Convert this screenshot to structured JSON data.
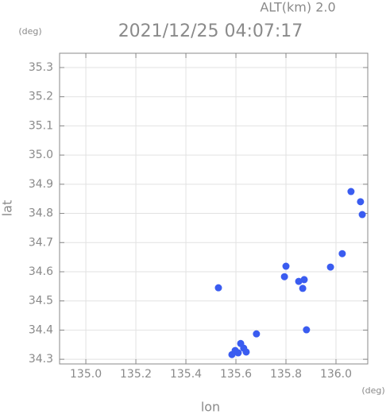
{
  "chart_data": {
    "type": "scatter",
    "title": "2021/12/25 04:07:17",
    "annotation": "ALT(km)  2.0",
    "x_label": "lon",
    "y_label": "lat",
    "x_unit": "(deg)",
    "y_unit": "(deg)",
    "x": [
      135.53,
      135.584,
      135.609,
      135.619,
      135.631,
      135.641,
      135.597,
      135.682,
      135.8,
      135.794,
      135.851,
      135.873,
      135.867,
      135.882,
      135.978,
      136.025,
      136.06,
      136.098,
      136.105
    ],
    "values": [
      34.545,
      34.316,
      34.322,
      34.354,
      34.338,
      34.325,
      34.33,
      34.387,
      34.619,
      34.583,
      34.567,
      34.573,
      34.543,
      34.401,
      34.616,
      34.662,
      34.875,
      34.84,
      34.796
    ],
    "color": "#3a5cf0",
    "xlim": [
      134.895,
      136.127
    ],
    "ylim": [
      34.284,
      35.349
    ],
    "xticks": [
      {
        "value": 135,
        "label": "135.0"
      },
      135.2,
      135.4,
      135.6,
      135.8,
      {
        "value": 136,
        "label": "136.0"
      }
    ],
    "yticks": [
      34.3,
      34.4,
      34.5,
      34.6,
      34.7,
      34.8,
      34.9,
      {
        "value": 35,
        "label": "35.0"
      },
      35.1,
      35.2,
      35.3
    ],
    "grid": true
  }
}
